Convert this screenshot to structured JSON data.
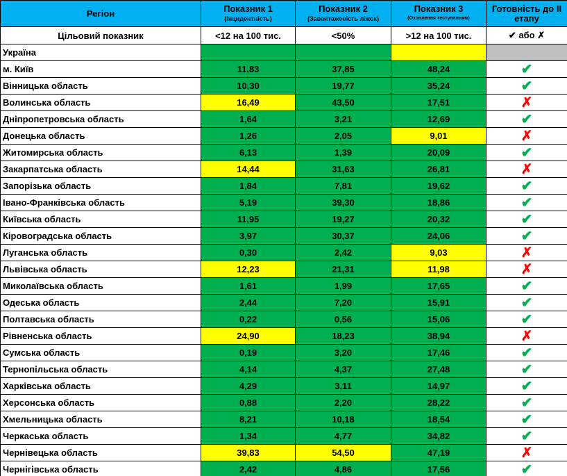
{
  "header": {
    "columns": [
      {
        "title": "Регіон"
      },
      {
        "title": "Показник 1",
        "subtitle": "(Інцидентність)"
      },
      {
        "title": "Показник 2",
        "subtitle": "(Завантаженість ліжок)"
      },
      {
        "title": "Показник 3",
        "subtitle": "(Охоплення тестуванням)"
      },
      {
        "title": "Готовність до ІІ етапу"
      }
    ],
    "fill": "#00b0f0"
  },
  "target": {
    "label": "Цільовий показник",
    "values": [
      "<12 на 100 тис.",
      "<50%",
      ">12 на 100 тис.",
      "✔ або ✗"
    ]
  },
  "rows": [
    {
      "region": "Україна",
      "values": [
        null,
        null,
        null
      ],
      "fills": [
        "#00b050",
        "#00b050",
        "#ffff00"
      ],
      "ready": null,
      "ready_fill": "#bfbfbf"
    },
    {
      "region": "м. Київ",
      "values": [
        "11,83",
        "37,85",
        "48,24"
      ],
      "fills": [
        "#00b050",
        "#00b050",
        "#00b050"
      ],
      "ready": "✔",
      "ready_color": "#00b050"
    },
    {
      "region": "Вінницька область",
      "values": [
        "10,30",
        "19,77",
        "35,24"
      ],
      "fills": [
        "#00b050",
        "#00b050",
        "#00b050"
      ],
      "ready": "✔",
      "ready_color": "#00b050"
    },
    {
      "region": "Волинська область",
      "values": [
        "16,49",
        "43,50",
        "17,51"
      ],
      "fills": [
        "#ffff00",
        "#00b050",
        "#00b050"
      ],
      "ready": "✗",
      "ready_color": "#ff0000"
    },
    {
      "region": "Дніпропетровська область",
      "values": [
        "1,64",
        "3,21",
        "12,69"
      ],
      "fills": [
        "#00b050",
        "#00b050",
        "#00b050"
      ],
      "ready": "✔",
      "ready_color": "#00b050"
    },
    {
      "region": "Донецька область",
      "values": [
        "1,26",
        "2,05",
        "9,01"
      ],
      "fills": [
        "#00b050",
        "#00b050",
        "#ffff00"
      ],
      "ready": "✗",
      "ready_color": "#ff0000"
    },
    {
      "region": "Житомирська область",
      "values": [
        "6,13",
        "1,39",
        "20,09"
      ],
      "fills": [
        "#00b050",
        "#00b050",
        "#00b050"
      ],
      "ready": "✔",
      "ready_color": "#00b050"
    },
    {
      "region": "Закарпатська область",
      "values": [
        "14,44",
        "31,63",
        "26,81"
      ],
      "fills": [
        "#ffff00",
        "#00b050",
        "#00b050"
      ],
      "ready": "✗",
      "ready_color": "#ff0000"
    },
    {
      "region": "Запорізька область",
      "values": [
        "1,84",
        "7,81",
        "19,62"
      ],
      "fills": [
        "#00b050",
        "#00b050",
        "#00b050"
      ],
      "ready": "✔",
      "ready_color": "#00b050"
    },
    {
      "region": "Івано-Франківська область",
      "values": [
        "5,19",
        "39,30",
        "18,86"
      ],
      "fills": [
        "#00b050",
        "#00b050",
        "#00b050"
      ],
      "ready": "✔",
      "ready_color": "#00b050"
    },
    {
      "region": "Київська область",
      "values": [
        "11,95",
        "19,27",
        "20,32"
      ],
      "fills": [
        "#00b050",
        "#00b050",
        "#00b050"
      ],
      "ready": "✔",
      "ready_color": "#00b050"
    },
    {
      "region": "Кіровоградська область",
      "values": [
        "3,97",
        "30,37",
        "24,06"
      ],
      "fills": [
        "#00b050",
        "#00b050",
        "#00b050"
      ],
      "ready": "✔",
      "ready_color": "#00b050"
    },
    {
      "region": "Луганська область",
      "values": [
        "0,30",
        "2,42",
        "9,03"
      ],
      "fills": [
        "#00b050",
        "#00b050",
        "#ffff00"
      ],
      "ready": "✗",
      "ready_color": "#ff0000"
    },
    {
      "region": "Львівська область",
      "values": [
        "12,23",
        "21,31",
        "11,98"
      ],
      "fills": [
        "#ffff00",
        "#00b050",
        "#ffff00"
      ],
      "ready": "✗",
      "ready_color": "#ff0000"
    },
    {
      "region": "Миколаївська область",
      "values": [
        "1,61",
        "1,99",
        "17,65"
      ],
      "fills": [
        "#00b050",
        "#00b050",
        "#00b050"
      ],
      "ready": "✔",
      "ready_color": "#00b050"
    },
    {
      "region": "Одеська область",
      "values": [
        "2,44",
        "7,20",
        "15,91"
      ],
      "fills": [
        "#00b050",
        "#00b050",
        "#00b050"
      ],
      "ready": "✔",
      "ready_color": "#00b050"
    },
    {
      "region": "Полтавська область",
      "values": [
        "0,22",
        "0,56",
        "15,06"
      ],
      "fills": [
        "#00b050",
        "#00b050",
        "#00b050"
      ],
      "ready": "✔",
      "ready_color": "#00b050"
    },
    {
      "region": "Рівненська область",
      "values": [
        "24,90",
        "18,23",
        "38,94"
      ],
      "fills": [
        "#ffff00",
        "#00b050",
        "#00b050"
      ],
      "ready": "✗",
      "ready_color": "#ff0000"
    },
    {
      "region": "Сумська область",
      "values": [
        "0,19",
        "3,20",
        "17,46"
      ],
      "fills": [
        "#00b050",
        "#00b050",
        "#00b050"
      ],
      "ready": "✔",
      "ready_color": "#00b050"
    },
    {
      "region": "Тернопільська область",
      "values": [
        "4,14",
        "4,37",
        "27,48"
      ],
      "fills": [
        "#00b050",
        "#00b050",
        "#00b050"
      ],
      "ready": "✔",
      "ready_color": "#00b050"
    },
    {
      "region": "Харківська область",
      "values": [
        "4,29",
        "3,11",
        "14,97"
      ],
      "fills": [
        "#00b050",
        "#00b050",
        "#00b050"
      ],
      "ready": "✔",
      "ready_color": "#00b050"
    },
    {
      "region": "Херсонська область",
      "values": [
        "0,88",
        "2,20",
        "28,22"
      ],
      "fills": [
        "#00b050",
        "#00b050",
        "#00b050"
      ],
      "ready": "✔",
      "ready_color": "#00b050"
    },
    {
      "region": "Хмельницька область",
      "values": [
        "8,21",
        "10,18",
        "18,54"
      ],
      "fills": [
        "#00b050",
        "#00b050",
        "#00b050"
      ],
      "ready": "✔",
      "ready_color": "#00b050"
    },
    {
      "region": "Черкаська область",
      "values": [
        "1,34",
        "4,77",
        "34,82"
      ],
      "fills": [
        "#00b050",
        "#00b050",
        "#00b050"
      ],
      "ready": "✔",
      "ready_color": "#00b050"
    },
    {
      "region": "Чернівецька область",
      "values": [
        "39,83",
        "54,50",
        "47,19"
      ],
      "fills": [
        "#ffff00",
        "#ffff00",
        "#00b050"
      ],
      "ready": "✗",
      "ready_color": "#ff0000"
    },
    {
      "region": "Чернігівська область",
      "values": [
        "2,42",
        "4,86",
        "17,56"
      ],
      "fills": [
        "#00b050",
        "#00b050",
        "#00b050"
      ],
      "ready": "✔",
      "ready_color": "#00b050"
    }
  ]
}
